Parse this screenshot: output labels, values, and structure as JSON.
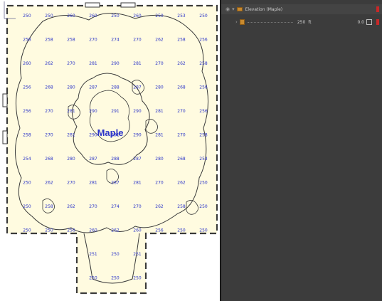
{
  "viewport": {
    "plan_label": "Maple",
    "label_color": "#2b34c9",
    "fill_color": "#fffbe0",
    "outline_color": "#3a3a3a",
    "grid_values": [
      [
        "250",
        "250",
        "260",
        "260",
        "250",
        "260",
        "250",
        "253",
        "250"
      ],
      [
        "258",
        "258",
        "258",
        "270",
        "274",
        "270",
        "262",
        "258",
        "256"
      ],
      [
        "260",
        "262",
        "270",
        "281",
        "290",
        "281",
        "270",
        "262",
        "258"
      ],
      [
        "256",
        "268",
        "280",
        "287",
        "288",
        "287",
        "280",
        "268",
        "256"
      ],
      [
        "256",
        "270",
        "281",
        "290",
        "291",
        "290",
        "281",
        "270",
        "256"
      ],
      [
        "258",
        "270",
        "281",
        "290",
        "291",
        "290",
        "281",
        "270",
        "258"
      ],
      [
        "254",
        "268",
        "280",
        "287",
        "288",
        "287",
        "280",
        "268",
        "254"
      ],
      [
        "250",
        "262",
        "270",
        "281",
        "287",
        "281",
        "270",
        "262",
        "250"
      ],
      [
        "250",
        "258",
        "262",
        "270",
        "274",
        "270",
        "262",
        "258",
        "250"
      ],
      [
        "250",
        "250",
        "256",
        "260",
        "262",
        "260",
        "256",
        "250",
        "250"
      ],
      [
        "",
        "",
        "",
        "251",
        "250",
        "251",
        "",
        "",
        ""
      ],
      [
        "",
        "",
        "",
        "250",
        "250",
        "250",
        "",
        "",
        ""
      ]
    ]
  },
  "layers_panel": {
    "row_1": {
      "expand_glyph": "▾",
      "visibility_glyph": "◉",
      "label": "Elevation (Maple)",
      "marker_color": "#c82828"
    },
    "row_2": {
      "expand_glyph": "›",
      "value_label": "250",
      "unit_label": "ft",
      "opacity_label": "0.0",
      "marker_color": "#c82828"
    }
  }
}
